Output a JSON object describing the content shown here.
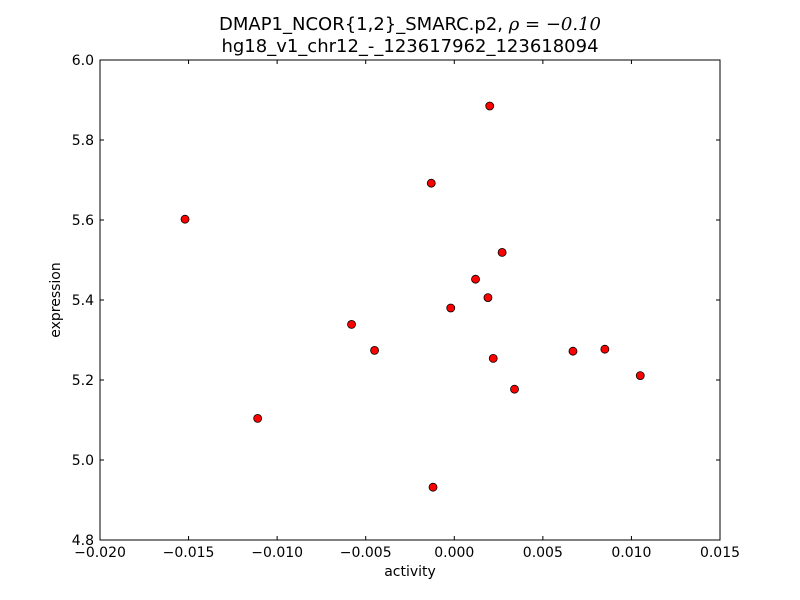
{
  "chart_data": {
    "type": "scatter",
    "title": "DMAP1_NCOR{1,2}_SMARC.p2, ",
    "title_rho": "ρ = −0.10",
    "subtitle": "hg18_v1_chr12_-_123617962_123618094",
    "xlabel": "activity",
    "ylabel": "expression",
    "xlim": [
      -0.02,
      0.015
    ],
    "ylim": [
      4.8,
      6.0
    ],
    "xticks": [
      -0.02,
      -0.015,
      -0.01,
      -0.005,
      0.0,
      0.005,
      0.01,
      0.015
    ],
    "xtick_labels": [
      "−0.020",
      "−0.015",
      "−0.010",
      "−0.005",
      "0.000",
      "0.005",
      "0.010",
      "0.015"
    ],
    "yticks": [
      4.8,
      5.0,
      5.2,
      5.4,
      5.6,
      5.8,
      6.0
    ],
    "ytick_labels": [
      "4.8",
      "5.0",
      "5.2",
      "5.4",
      "5.6",
      "5.8",
      "6.0"
    ],
    "grid": false,
    "marker_color": "#ff0000",
    "marker_edge_color": "#000000",
    "points": [
      {
        "x": -0.0152,
        "y": 5.602
      },
      {
        "x": -0.0111,
        "y": 5.104
      },
      {
        "x": -0.0058,
        "y": 5.339
      },
      {
        "x": -0.0045,
        "y": 5.274
      },
      {
        "x": -0.0013,
        "y": 5.692
      },
      {
        "x": -0.0012,
        "y": 4.932
      },
      {
        "x": -0.0002,
        "y": 5.38
      },
      {
        "x": 0.0012,
        "y": 5.452
      },
      {
        "x": 0.0019,
        "y": 5.406
      },
      {
        "x": 0.002,
        "y": 5.885
      },
      {
        "x": 0.0022,
        "y": 5.254
      },
      {
        "x": 0.0027,
        "y": 5.519
      },
      {
        "x": 0.0034,
        "y": 5.177
      },
      {
        "x": 0.0067,
        "y": 5.272
      },
      {
        "x": 0.0085,
        "y": 5.277
      },
      {
        "x": 0.0105,
        "y": 5.211
      }
    ]
  }
}
